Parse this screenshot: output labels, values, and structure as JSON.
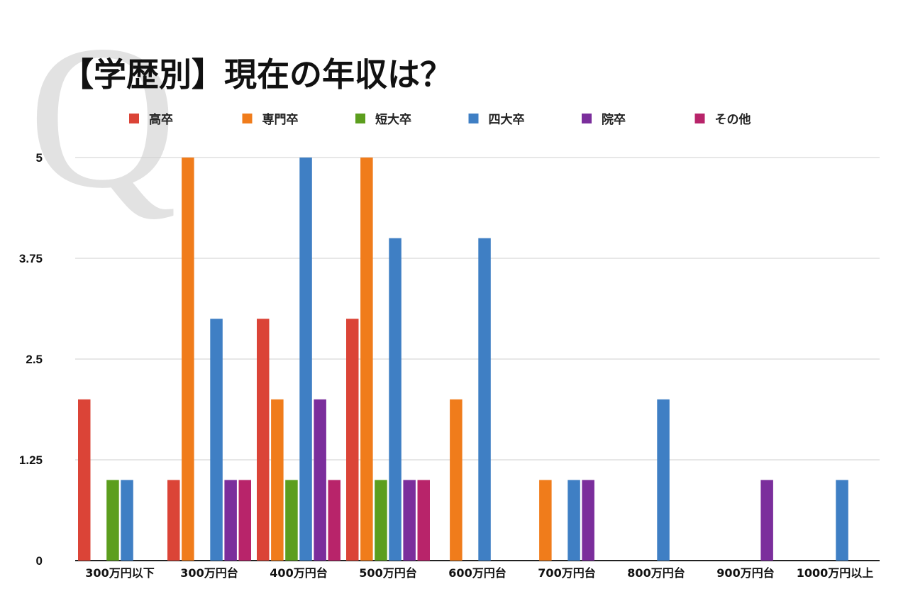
{
  "chart_data": {
    "type": "bar",
    "title": "【学歴別】現在の年収は？",
    "watermark": "Q",
    "categories": [
      "300万円以下",
      "300万円台",
      "400万円台",
      "500万円台",
      "600万円台",
      "700万円台",
      "800万円台",
      "900万円台",
      "1000万円以上"
    ],
    "series": [
      {
        "name": "高卒",
        "color": "#db4437",
        "values": [
          2,
          1,
          3,
          3,
          0,
          0,
          0,
          0,
          0
        ]
      },
      {
        "name": "専門卒",
        "color": "#f07c1b",
        "values": [
          0,
          5,
          2,
          5,
          2,
          1,
          0,
          0,
          0
        ]
      },
      {
        "name": "短大卒",
        "color": "#5c9e1e",
        "values": [
          1,
          0,
          1,
          1,
          0,
          0,
          0,
          0,
          0
        ]
      },
      {
        "name": "四大卒",
        "color": "#3f7fc4",
        "values": [
          1,
          3,
          5,
          4,
          4,
          1,
          2,
          0,
          1
        ]
      },
      {
        "name": "院卒",
        "color": "#7b2e9c",
        "values": [
          0,
          1,
          2,
          1,
          0,
          1,
          0,
          1,
          0
        ]
      },
      {
        "name": "その他",
        "color": "#b8246a",
        "values": [
          0,
          1,
          1,
          1,
          0,
          0,
          0,
          0,
          0
        ]
      }
    ],
    "yticks": [
      "0",
      "1.25",
      "2.5",
      "3.75",
      "5"
    ],
    "ylim": [
      0,
      5
    ],
    "xlabel": "",
    "ylabel": "",
    "grid": true,
    "legend_position": "top"
  }
}
